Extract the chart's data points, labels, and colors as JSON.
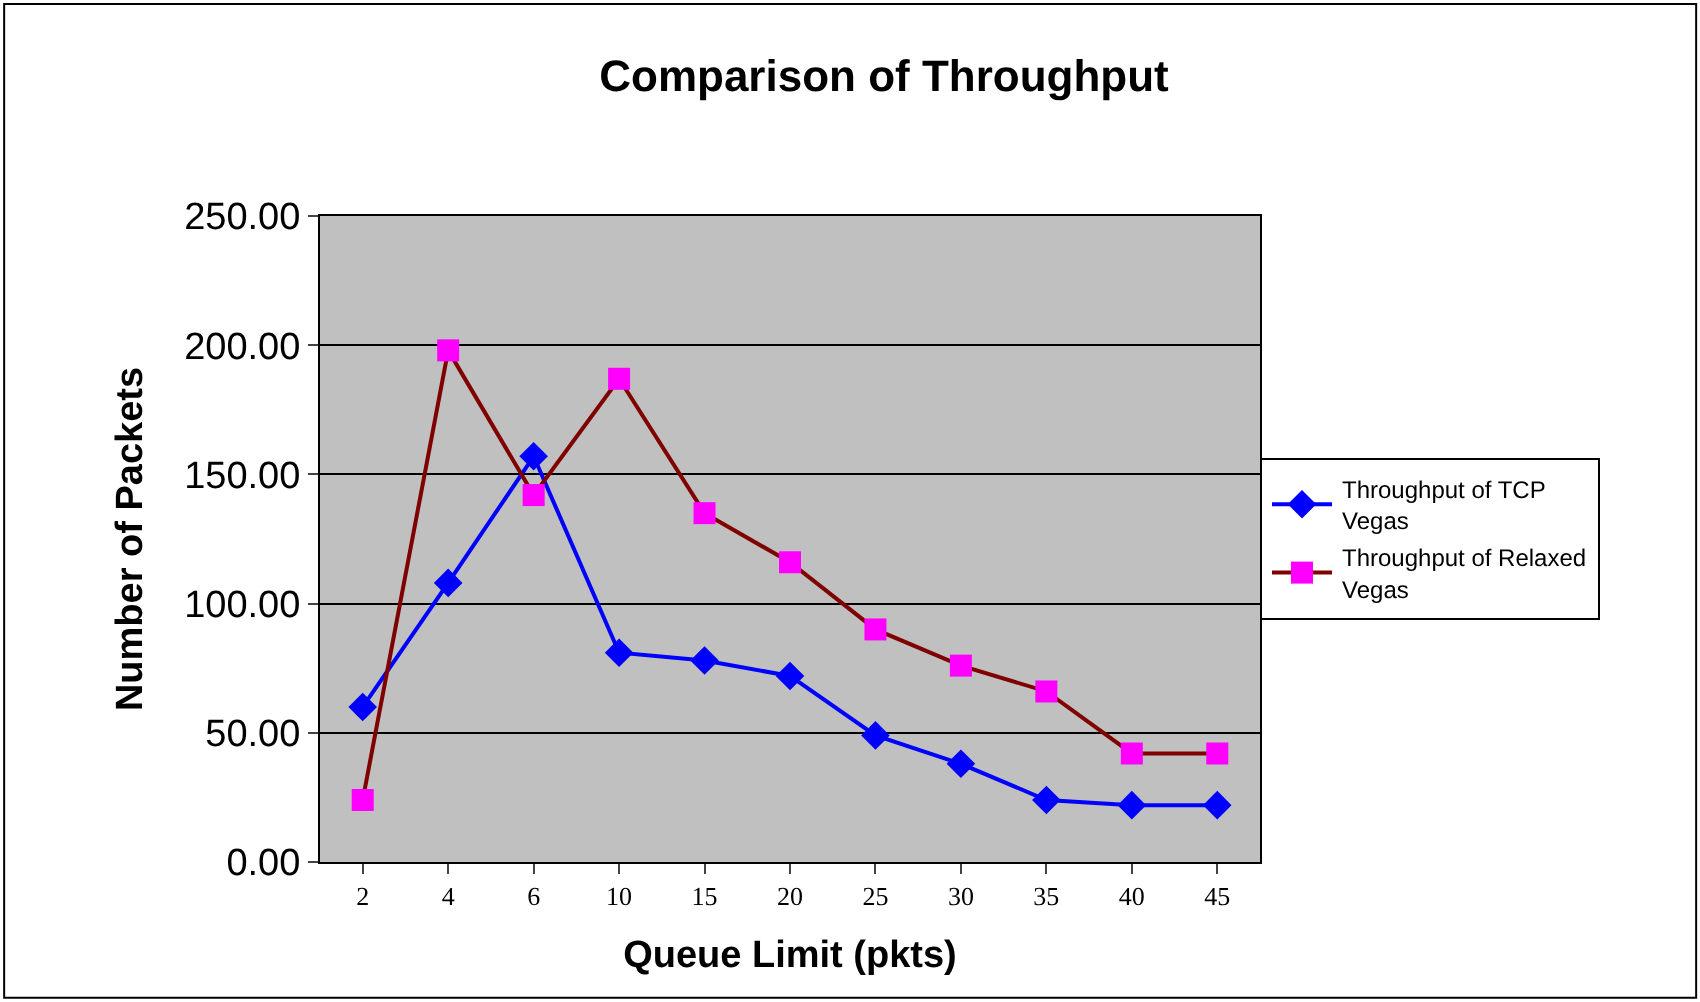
{
  "chart_data": {
    "type": "line",
    "title": "Comparison of Throughput",
    "xlabel": "Queue Limit (pkts)",
    "ylabel": "Number of Packets",
    "categories": [
      "2",
      "4",
      "6",
      "10",
      "15",
      "20",
      "25",
      "30",
      "35",
      "40",
      "45"
    ],
    "series": [
      {
        "name": "Throughput of TCP Vegas",
        "color": "#0000ff",
        "marker": "diamond",
        "values": [
          60,
          108,
          157,
          81,
          78,
          72,
          49,
          38,
          24,
          22,
          22
        ]
      },
      {
        "name": "Throughput of Relaxed Vegas",
        "color": "#800000",
        "marker": "square",
        "colors": [
          "#ff00ff",
          "#ff00ff",
          "#ff00ff",
          "#ff00ff",
          "#ff00ff",
          "#ff00ff",
          "#ff00ff",
          "#ff00ff",
          "#ff00ff",
          "#ff00ff",
          "#ff00ff"
        ],
        "values": [
          24,
          198,
          142,
          187,
          135,
          116,
          90,
          76,
          66,
          42,
          42
        ]
      }
    ],
    "ylim": [
      0,
      250
    ],
    "yticks": [
      {
        "value": 0,
        "label": "0.00"
      },
      {
        "value": 50,
        "label": "50.00"
      },
      {
        "value": 100,
        "label": "100.00"
      },
      {
        "value": 150,
        "label": "150.00"
      },
      {
        "value": 200,
        "label": "200.00"
      },
      {
        "value": 250,
        "label": "250.00"
      }
    ],
    "grid": "y",
    "legend": "right"
  }
}
